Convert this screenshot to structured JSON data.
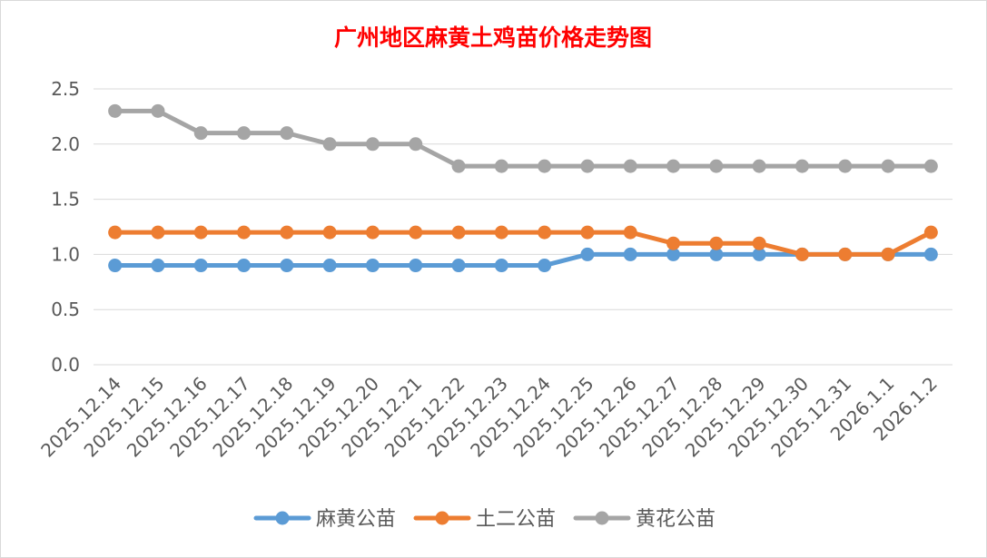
{
  "chart_data": {
    "type": "line",
    "title": "广州地区麻黄土鸡苗价格走势图",
    "xlabel": "",
    "ylabel": "",
    "categories": [
      "2025.12.14",
      "2025.12.15",
      "2025.12.16",
      "2025.12.17",
      "2025.12.18",
      "2025.12.19",
      "2025.12.20",
      "2025.12.21",
      "2025.12.22",
      "2025.12.23",
      "2025.12.24",
      "2025.12.25",
      "2025.12.26",
      "2025.12.27",
      "2025.12.28",
      "2025.12.29",
      "2025.12.30",
      "2025.12.31",
      "2026.1.1",
      "2026.1.2"
    ],
    "ylim": [
      0,
      2.5
    ],
    "yticks": [
      "0.0",
      "0.5",
      "1.0",
      "1.5",
      "2.0",
      "2.5"
    ],
    "grid": true,
    "legend_position": "bottom",
    "series": [
      {
        "name": "麻黄公苗",
        "color": "#5b9bd5",
        "values": [
          0.9,
          0.9,
          0.9,
          0.9,
          0.9,
          0.9,
          0.9,
          0.9,
          0.9,
          0.9,
          0.9,
          1.0,
          1.0,
          1.0,
          1.0,
          1.0,
          1.0,
          1.0,
          1.0,
          1.0
        ]
      },
      {
        "name": "土二公苗",
        "color": "#ed7d31",
        "values": [
          1.2,
          1.2,
          1.2,
          1.2,
          1.2,
          1.2,
          1.2,
          1.2,
          1.2,
          1.2,
          1.2,
          1.2,
          1.2,
          1.1,
          1.1,
          1.1,
          1.0,
          1.0,
          1.0,
          1.2
        ]
      },
      {
        "name": "黄花公苗",
        "color": "#a5a5a5",
        "values": [
          2.3,
          2.3,
          2.1,
          2.1,
          2.1,
          2.0,
          2.0,
          2.0,
          1.8,
          1.8,
          1.8,
          1.8,
          1.8,
          1.8,
          1.8,
          1.8,
          1.8,
          1.8,
          1.8,
          1.8
        ]
      }
    ]
  }
}
